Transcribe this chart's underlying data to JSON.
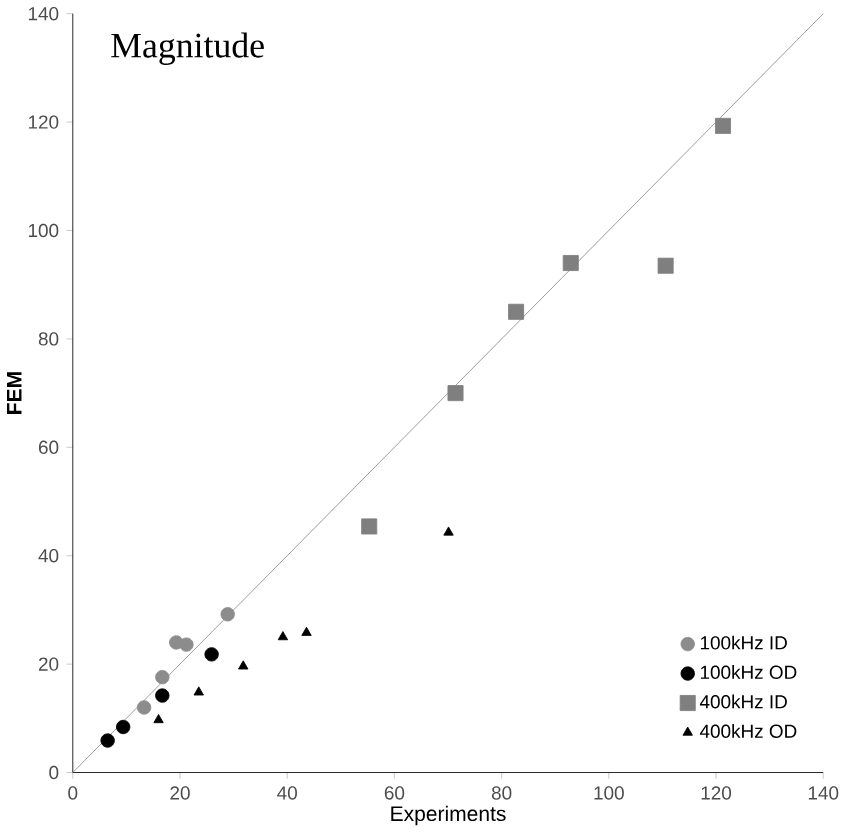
{
  "chart_data": {
    "type": "scatter",
    "title": "Magnitude",
    "xlabel": "Experiments",
    "ylabel": "FEM",
    "xlim": [
      0,
      140
    ],
    "ylim": [
      0,
      140
    ],
    "xticks": [
      0,
      20,
      40,
      60,
      80,
      100,
      120,
      140
    ],
    "yticks": [
      0,
      20,
      40,
      60,
      80,
      100,
      120,
      140
    ],
    "legend": "bottom right",
    "grid": false,
    "series": [
      {
        "name": "100kHz ID",
        "color": "#8c8c8c",
        "marker": "circle",
        "x": [
          13.3,
          16.7,
          19.3,
          21.2,
          28.9
        ],
        "values": [
          12.0,
          17.6,
          24.0,
          23.6,
          29.2
        ]
      },
      {
        "name": "100kHz OD",
        "color": "#000000",
        "marker": "circle",
        "x": [
          6.5,
          9.4,
          16.7,
          25.9
        ],
        "values": [
          5.9,
          8.4,
          14.2,
          21.8
        ]
      },
      {
        "name": "400kHz ID",
        "color": "#7f7f7f",
        "marker": "square",
        "x": [
          55.3,
          71.4,
          82.7,
          92.9,
          110.6,
          121.3
        ],
        "values": [
          45.4,
          70.0,
          85.0,
          94.0,
          93.5,
          119.3
        ]
      },
      {
        "name": "400kHz OD",
        "color": "#000000",
        "marker": "triangle",
        "x": [
          16.0,
          23.5,
          31.8,
          39.2,
          43.6,
          70.1
        ],
        "values": [
          9.7,
          14.8,
          19.6,
          25.0,
          25.8,
          44.3
        ]
      },
      {
        "type": "line",
        "color": "#8a8a8a",
        "marker": "none",
        "x": [
          0,
          140
        ],
        "values": [
          0,
          140
        ]
      }
    ]
  }
}
